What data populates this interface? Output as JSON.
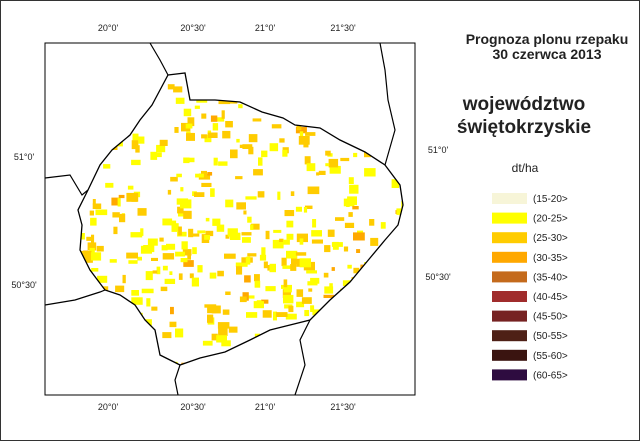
{
  "title": [
    "Prognoza plonu rzepaku",
    "30 czerwca 2013"
  ],
  "region": [
    "województwo",
    "świętokrzyskie"
  ],
  "legend": {
    "unit": "dt/ha",
    "items": [
      {
        "label": "(15-20>",
        "color": "#f7f5d8"
      },
      {
        "label": "(20-25>",
        "color": "#ffff00"
      },
      {
        "label": "(25-30>",
        "color": "#ffcc00"
      },
      {
        "label": "(30-35>",
        "color": "#ffa800"
      },
      {
        "label": "(35-40>",
        "color": "#c46a1c"
      },
      {
        "label": "(40-45>",
        "color": "#a02c2c"
      },
      {
        "label": "(45-50>",
        "color": "#762222"
      },
      {
        "label": "(50-55>",
        "color": "#4e2016"
      },
      {
        "label": "(55-60>",
        "color": "#3a1410"
      },
      {
        "label": "(60-65>",
        "color": "#2e0c40"
      }
    ]
  },
  "ticks": {
    "top": [
      "20°0'",
      "20°30'",
      "21°0'",
      "21°30'"
    ],
    "bottom": [
      "20°0'",
      "20°30'",
      "21°0'",
      "21°30'"
    ],
    "left": [
      "51°0'",
      "50°30'"
    ],
    "right": [
      "51°0'",
      "50°30'"
    ]
  }
}
